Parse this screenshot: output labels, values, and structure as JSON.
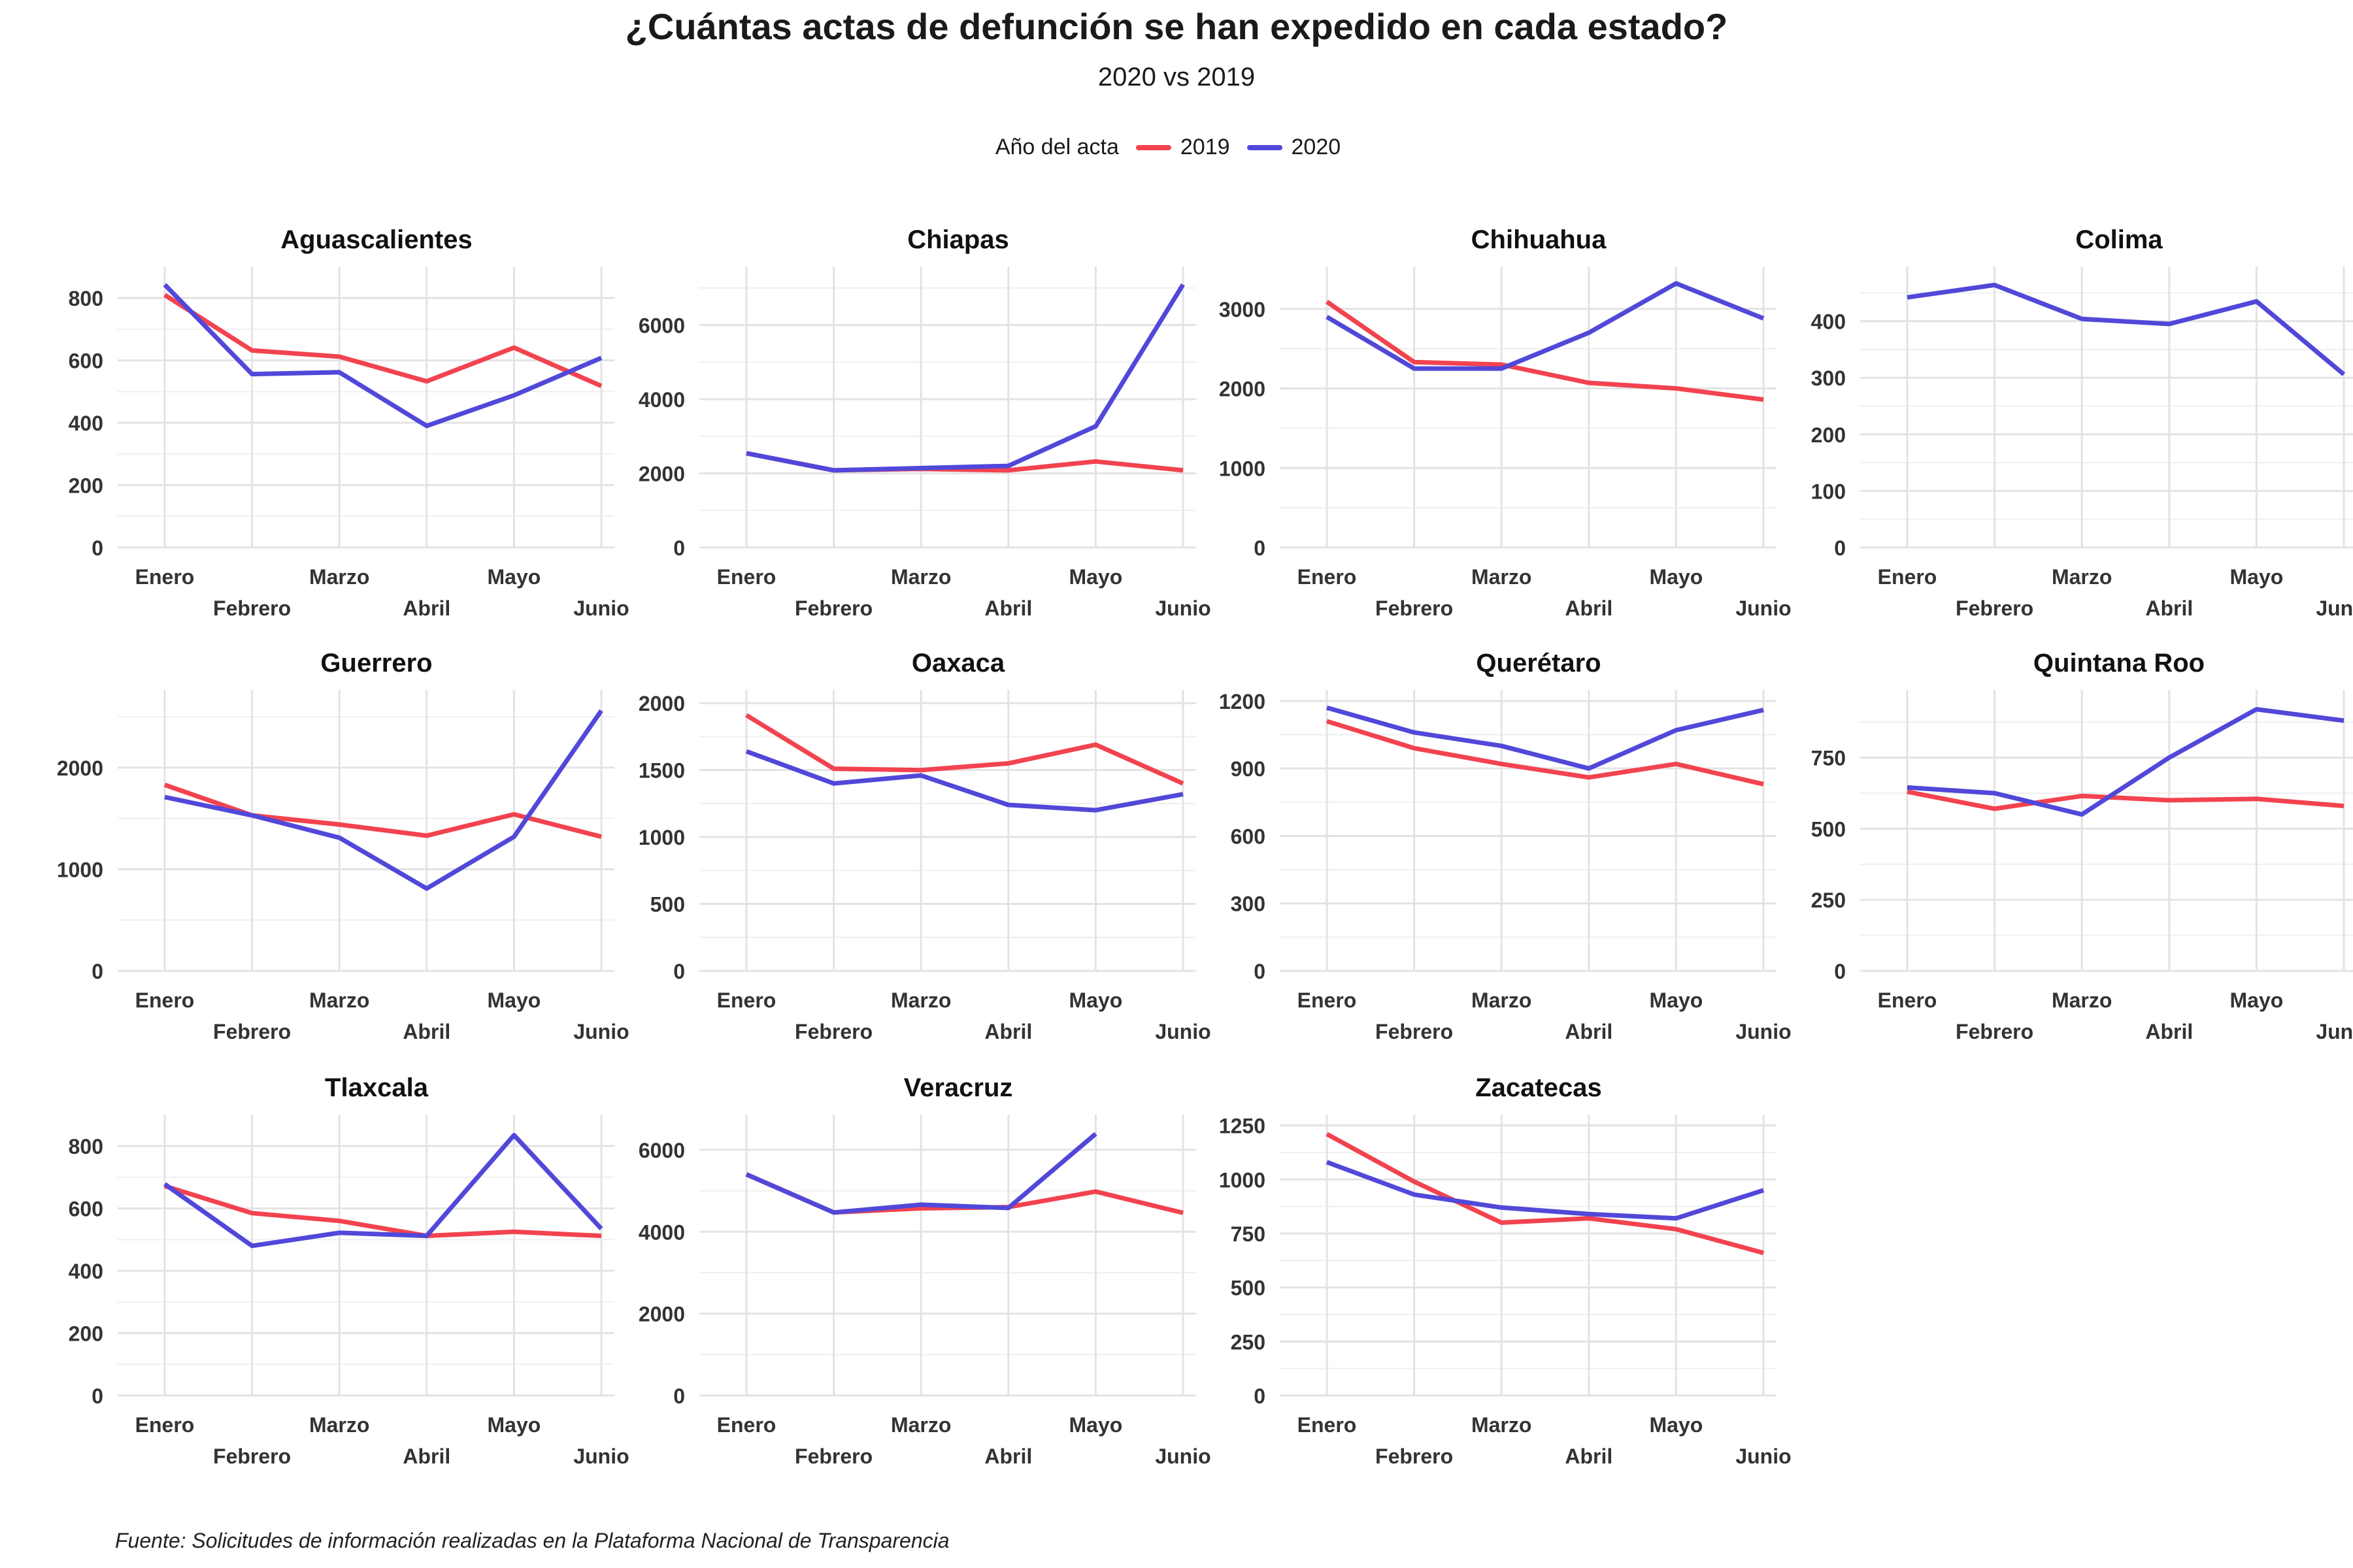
{
  "title": "¿Cuántas actas de defunción se han expedido en cada estado?",
  "subtitle": "2020 vs 2019",
  "legend": {
    "title": "Año del acta",
    "items": [
      {
        "label": "2019",
        "color": "#F2434F"
      },
      {
        "label": "2020",
        "color": "#5148D9"
      }
    ]
  },
  "caption": "Fuente: Solicitudes de información realizadas en la Plataforma Nacional de Transparencia",
  "chart_data": {
    "type": "line",
    "layout": "facet-grid 3x4",
    "grid": true,
    "legend_position": "top",
    "months": [
      "Enero",
      "Febrero",
      "Marzo",
      "Abril",
      "Mayo",
      "Junio"
    ],
    "series_names": [
      "2019",
      "2020"
    ],
    "panels": [
      {
        "title": "Aguascalientes",
        "ylim": [
          0,
          880
        ],
        "yticks": [
          0,
          200,
          400,
          600,
          800
        ],
        "series": [
          {
            "name": "2019",
            "values": [
              810,
              632,
              612,
              533,
              641,
              518
            ]
          },
          {
            "name": "2020",
            "values": [
              843,
              556,
              562,
              390,
              488,
              608
            ]
          }
        ]
      },
      {
        "title": "Chiapas",
        "ylim": [
          0,
          7400
        ],
        "yticks": [
          0,
          2000,
          4000,
          6000
        ],
        "series": [
          {
            "name": "2019",
            "values": [
              2540,
              2080,
              2120,
              2080,
              2320,
              2080
            ]
          },
          {
            "name": "2020",
            "values": [
              2540,
              2080,
              2140,
              2200,
              3270,
              7090
            ]
          }
        ]
      },
      {
        "title": "Chihuahua",
        "ylim": [
          0,
          3450
        ],
        "yticks": [
          0,
          1000,
          2000,
          3000
        ],
        "series": [
          {
            "name": "2019",
            "values": [
              3090,
              2330,
              2300,
              2070,
              2000,
              1860
            ]
          },
          {
            "name": "2020",
            "values": [
              2900,
              2250,
              2250,
              2700,
              3320,
              2880
            ]
          }
        ]
      },
      {
        "title": "Colima",
        "ylim": [
          0,
          485
        ],
        "yticks": [
          0,
          100,
          200,
          300,
          400
        ],
        "series": [
          {
            "name": "2020",
            "values": [
              442,
              464,
              404,
              395,
              435,
              306
            ]
          }
        ]
      },
      {
        "title": "Guerrero",
        "ylim": [
          0,
          2700
        ],
        "yticks": [
          0,
          1000,
          2000
        ],
        "series": [
          {
            "name": "2019",
            "values": [
              1830,
              1530,
              1440,
              1330,
              1540,
              1320
            ]
          },
          {
            "name": "2020",
            "values": [
              1710,
              1530,
              1310,
              810,
              1320,
              2560
            ]
          }
        ]
      },
      {
        "title": "Oaxaca",
        "ylim": [
          0,
          2050
        ],
        "yticks": [
          0,
          500,
          1000,
          1500,
          2000
        ],
        "series": [
          {
            "name": "2019",
            "values": [
              1910,
              1510,
              1500,
              1550,
              1690,
              1400
            ]
          },
          {
            "name": "2020",
            "values": [
              1640,
              1400,
              1460,
              1240,
              1200,
              1320
            ]
          }
        ]
      },
      {
        "title": "Querétaro",
        "ylim": [
          0,
          1220
        ],
        "yticks": [
          0,
          300,
          600,
          900,
          1200
        ],
        "series": [
          {
            "name": "2019",
            "values": [
              1110,
              990,
              920,
              860,
              920,
              830
            ]
          },
          {
            "name": "2020",
            "values": [
              1170,
              1060,
              1000,
              900,
              1070,
              1160
            ]
          }
        ]
      },
      {
        "title": "Quintana Roo",
        "ylim": [
          0,
          965
        ],
        "yticks": [
          0,
          250,
          500,
          750
        ],
        "series": [
          {
            "name": "2019",
            "values": [
              630,
              570,
              615,
              600,
              605,
              580
            ]
          },
          {
            "name": "2020",
            "values": [
              645,
              625,
              550,
              750,
              920,
              880
            ]
          }
        ]
      },
      {
        "title": "Tlaxcala",
        "ylim": [
          0,
          880
        ],
        "yticks": [
          0,
          200,
          400,
          600,
          800
        ],
        "series": [
          {
            "name": "2019",
            "values": [
              672,
              585,
              560,
              512,
              525,
              512
            ]
          },
          {
            "name": "2020",
            "values": [
              678,
              480,
              522,
              512,
              835,
              535
            ]
          }
        ]
      },
      {
        "title": "Veracruz",
        "ylim": [
          0,
          6700
        ],
        "yticks": [
          0,
          2000,
          4000,
          6000
        ],
        "series": [
          {
            "name": "2019",
            "values": [
              5400,
              4470,
              4570,
              4600,
              4980,
              4460
            ]
          },
          {
            "name": "2020",
            "values": [
              5400,
              4470,
              4660,
              4580,
              6390
            ]
          }
        ]
      },
      {
        "title": "Zacatecas",
        "ylim": [
          0,
          1270
        ],
        "yticks": [
          0,
          250,
          500,
          750,
          1000,
          1250
        ],
        "series": [
          {
            "name": "2019",
            "values": [
              1210,
              990,
              800,
              820,
              770,
              660
            ]
          },
          {
            "name": "2020",
            "values": [
              1080,
              930,
              870,
              840,
              820,
              950
            ]
          }
        ]
      }
    ]
  }
}
